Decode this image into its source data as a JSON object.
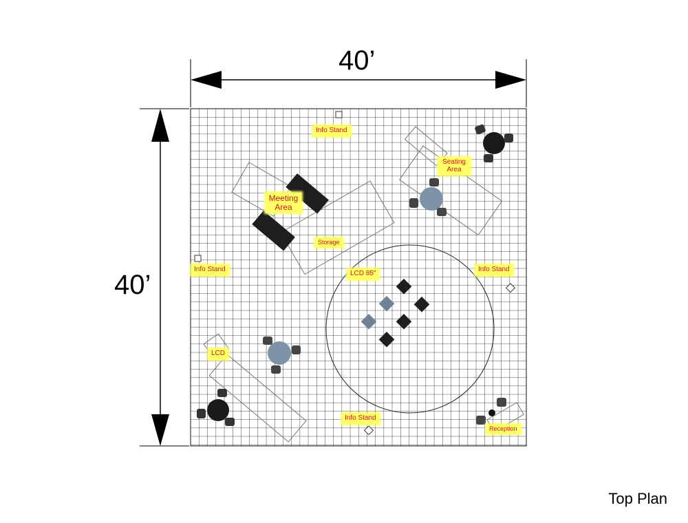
{
  "dimensions": {
    "width_label": "40’",
    "height_label": "40’"
  },
  "caption": "Top Plan",
  "labels": {
    "info_stand_top": "Info Stand",
    "seating_area": "Seating Area",
    "meeting_area": "Meeting Area",
    "storage": "Storage",
    "info_stand_left": "Info Stand",
    "lcd_85": "LCD 85\"",
    "info_stand_right": "Info Stand",
    "lcd": "LCD",
    "info_stand_bottom": "Info Stand",
    "reception": "Reception"
  },
  "colors": {
    "label_bg": "#ffff66",
    "label_text": "#cc1a1a",
    "grid": "#000000",
    "dark_furniture": "#222222",
    "light_furniture": "#7a8fa6"
  }
}
